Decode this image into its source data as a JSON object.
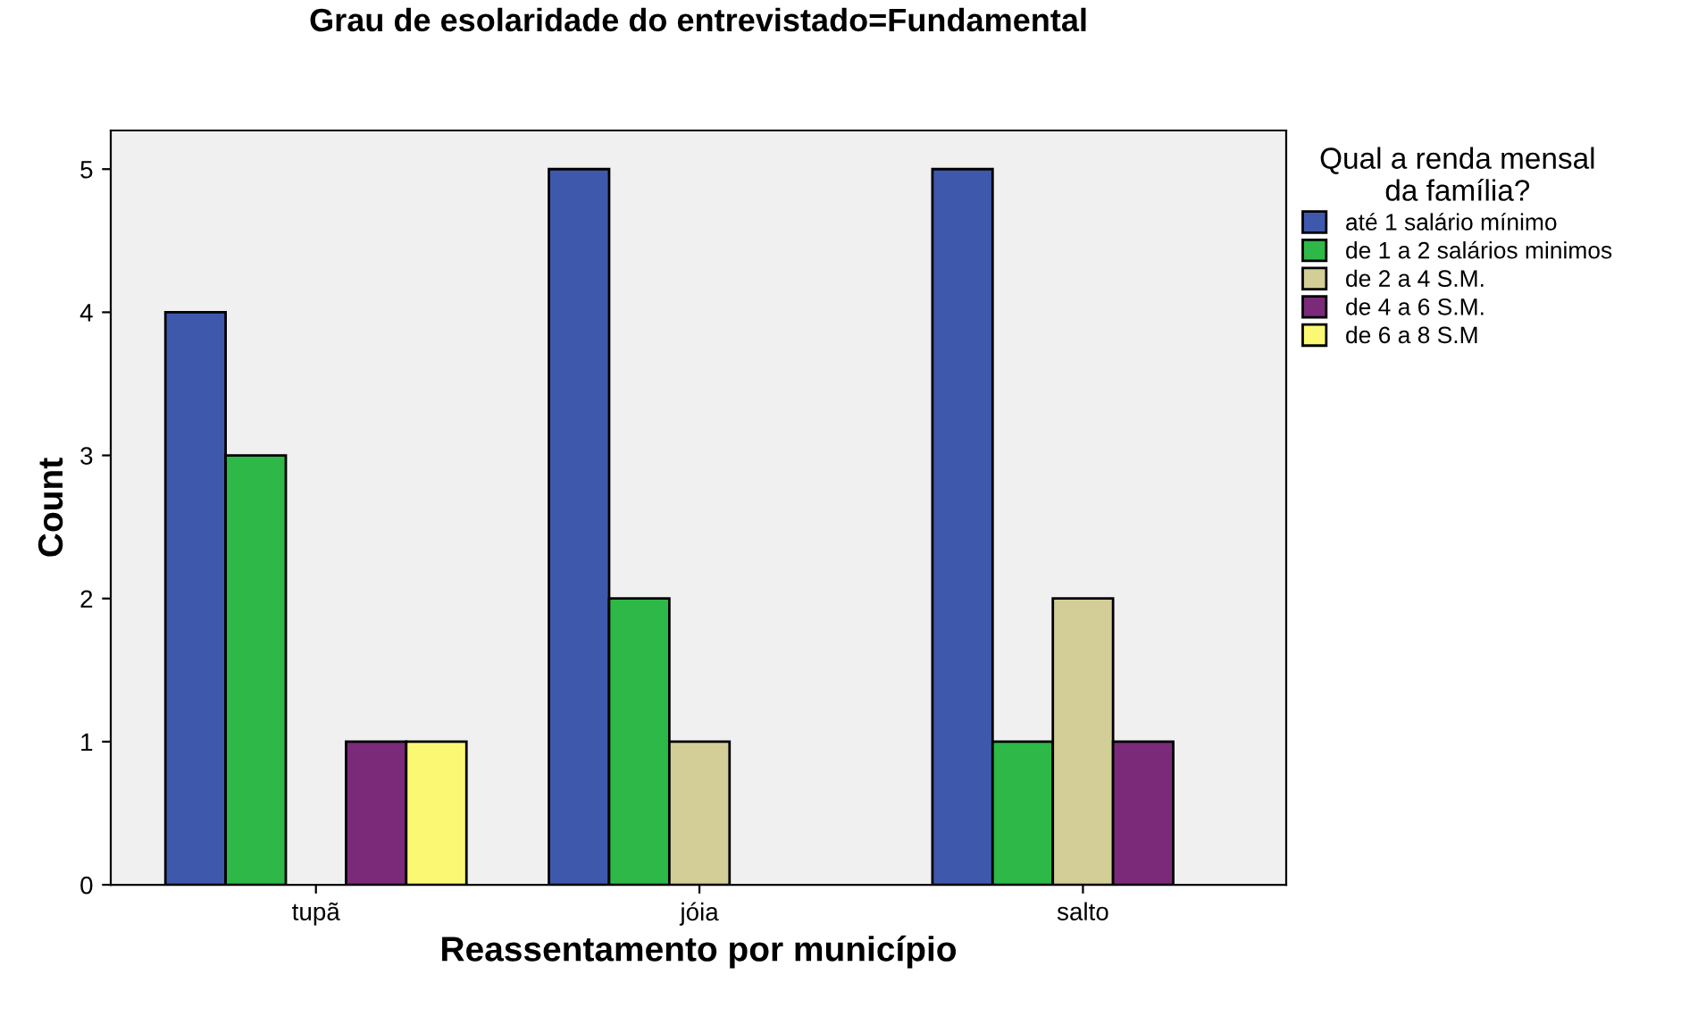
{
  "chart_data": {
    "type": "bar",
    "title": "Grau de esolaridade do entrevistado=Fundamental",
    "xlabel": "Reassentamento por município",
    "ylabel": "Count",
    "legend_title": "Qual a renda mensal\nda família?",
    "categories": [
      "tupã",
      "jóia",
      "salto"
    ],
    "series": [
      {
        "name": "até 1 salário mínimo",
        "color": "#3e58ac",
        "values": [
          4,
          5,
          5
        ]
      },
      {
        "name": "de 1 a 2 salários minimos",
        "color": "#2eb848",
        "values": [
          3,
          2,
          1
        ]
      },
      {
        "name": "de 2 a 4 S.M.",
        "color": "#d3ce97",
        "values": [
          null,
          1,
          2
        ]
      },
      {
        "name": "de 4 a 6 S.M.",
        "color": "#7b2a7a",
        "values": [
          1,
          null,
          1
        ]
      },
      {
        "name": "de 6 a 8 S.M",
        "color": "#fbf873",
        "values": [
          1,
          null,
          null
        ]
      }
    ],
    "ylim": [
      0,
      5.27
    ],
    "yticks": [
      0,
      1,
      2,
      3,
      4,
      5
    ],
    "grid": false,
    "legend": "top right"
  }
}
